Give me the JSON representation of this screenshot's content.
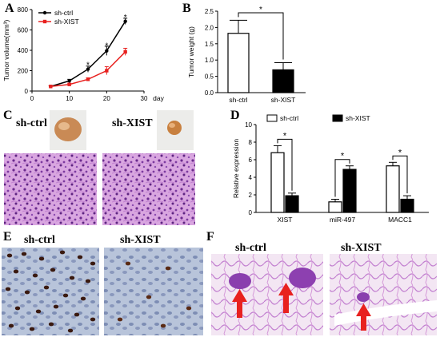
{
  "panels": {
    "a": "A",
    "b": "B",
    "c": "C",
    "d": "D",
    "e": "E",
    "f": "F"
  },
  "labels": {
    "c_ctrl": "sh-ctrl",
    "c_xist": "sh-XIST",
    "e_ctrl": "sh-ctrl",
    "e_xist": "sh-XIST",
    "f_ctrl": "sh-ctrl",
    "f_xist": "sh-XIST"
  },
  "chart_data": [
    {
      "type": "line",
      "panel": "A",
      "ylabel": "Tumor volume(mm³)",
      "xlabel": "day",
      "xlim": [
        0,
        30
      ],
      "ylim": [
        0,
        800
      ],
      "xticks": [
        0,
        10,
        20,
        30
      ],
      "yticks": [
        0,
        200,
        400,
        600,
        800
      ],
      "legend_position": "top-left",
      "x": [
        5,
        10,
        15,
        20,
        25
      ],
      "series": [
        {
          "name": "sh-ctrl",
          "color": "#000000",
          "values": [
            45,
            100,
            215,
            395,
            685
          ],
          "errors": [
            8,
            15,
            30,
            45,
            30
          ]
        },
        {
          "name": "sh-XIST",
          "color": "#e8211f",
          "values": [
            45,
            65,
            115,
            200,
            385
          ],
          "errors": [
            6,
            12,
            15,
            40,
            35
          ]
        }
      ],
      "significance": [
        {
          "x": 15,
          "y": 255,
          "text": "*"
        },
        {
          "x": 20,
          "y": 445,
          "text": "*"
        },
        {
          "x": 25,
          "y": 720,
          "text": "*"
        }
      ]
    },
    {
      "type": "bar",
      "panel": "B",
      "ylabel": "Tumor weight (g)",
      "ylim": [
        0,
        2.5
      ],
      "yticks": [
        0,
        0.5,
        1,
        1.5,
        2,
        2.5
      ],
      "yticklabels": [
        "0.0",
        "0.5",
        "1.0",
        "1.5",
        "2.0",
        "2.5"
      ],
      "categories": [
        "sh-ctrl",
        "sh-XIST"
      ],
      "values": [
        1.82,
        0.7
      ],
      "errors": [
        0.4,
        0.22
      ],
      "fills": [
        "#ffffff",
        "#000000"
      ],
      "significance": "*"
    },
    {
      "type": "bar",
      "panel": "D",
      "ylabel": "Relative expression",
      "ylim": [
        0,
        10
      ],
      "yticks": [
        0,
        2,
        4,
        6,
        8,
        10
      ],
      "categories": [
        "XIST",
        "miR-497",
        "MACC1"
      ],
      "legend_position": "top",
      "series": [
        {
          "name": "sh-ctrl",
          "fill": "#ffffff",
          "values": [
            6.8,
            1.2,
            5.3
          ],
          "errors": [
            0.8,
            0.3,
            0.4
          ]
        },
        {
          "name": "sh-XIST",
          "fill": "#000000",
          "values": [
            1.9,
            4.9,
            1.5
          ],
          "errors": [
            0.3,
            0.4,
            0.4
          ]
        }
      ],
      "significance": "*"
    }
  ]
}
